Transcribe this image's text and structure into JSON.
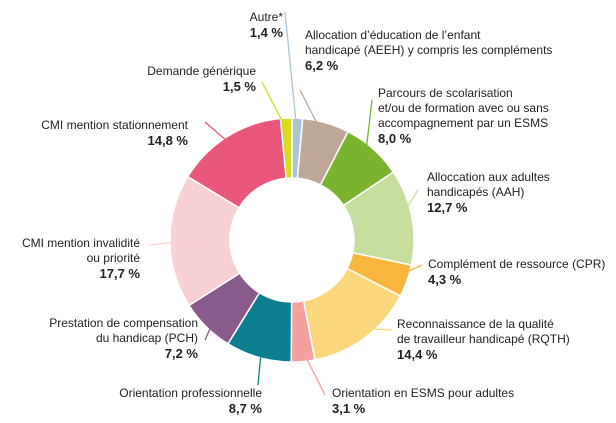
{
  "chart_data": {
    "type": "donut",
    "categories": [
      "Autre*",
      "Allocation d’éducation de l’enfant\nhandicapé (AEEH) y compris les compléments",
      "Parcours de scolarisation\net/ou de formation avec ou sans\naccompagnement par un ESMS",
      "Alloccation aux adultes\nhandicapés (AAH)",
      "Complément de ressource (CPR)",
      "Reconnaissance de la qualité\nde travailleur handicapé (RQTH)",
      "Orientation en ESMS pour adultes",
      "Orientation professionnelle",
      "Prestation de compensation\ndu handicap (PCH)",
      "CMI mention invalidité\nou priorité",
      "CMI mention stationnement",
      "Demande générique"
    ],
    "values": [
      1.4,
      6.2,
      8.0,
      12.7,
      4.3,
      14.4,
      3.1,
      8.7,
      7.2,
      17.7,
      14.8,
      1.5
    ],
    "value_labels": [
      "1,4 %",
      "6,2 %",
      "8,0 %",
      "12,7 %",
      "4,3 %",
      "14,4 %",
      "3,1 %",
      "8,7 %",
      "7,2 %",
      "17,7 %",
      "14,8 %",
      "1,5 %"
    ],
    "colors": [
      "#aac3d6",
      "#bfa898",
      "#7ab32e",
      "#c6df9f",
      "#f8b63d",
      "#fdd77c",
      "#f4a09e",
      "#0b7f8f",
      "#8b5a8c",
      "#f9d0d4",
      "#e9577a",
      "#d7dc1e"
    ]
  }
}
